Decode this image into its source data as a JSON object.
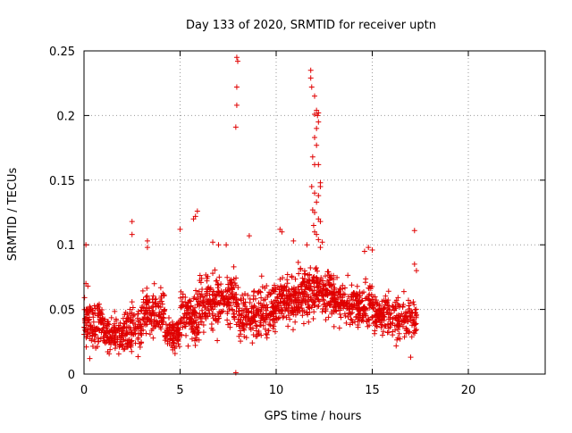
{
  "chart_data": {
    "type": "scatter",
    "title": "Day 133 of 2020, SRMTID for receiver uptn",
    "xlabel": "GPS time / hours",
    "ylabel": "SRMTID / TECUs",
    "xlim": [
      0,
      24
    ],
    "ylim": [
      0,
      0.25
    ],
    "xticks": [
      "0",
      "5",
      "10",
      "15",
      "20"
    ],
    "yticks": [
      "0",
      "0.05",
      "0.1",
      "0.15",
      "0.2",
      "0.25"
    ],
    "grid": true,
    "marker": "plus",
    "color": "#e00000",
    "bursts": [
      {
        "x_start": 0.0,
        "x_end": 1.0,
        "base": 0.038,
        "spread": 0.018,
        "count": 120
      },
      {
        "x_start": 1.0,
        "x_end": 2.0,
        "base": 0.03,
        "spread": 0.014,
        "count": 110
      },
      {
        "x_start": 2.0,
        "x_end": 3.0,
        "base": 0.035,
        "spread": 0.018,
        "count": 110
      },
      {
        "x_start": 3.0,
        "x_end": 4.2,
        "base": 0.048,
        "spread": 0.018,
        "count": 130
      },
      {
        "x_start": 4.2,
        "x_end": 5.0,
        "base": 0.032,
        "spread": 0.012,
        "count": 90
      },
      {
        "x_start": 5.0,
        "x_end": 6.0,
        "base": 0.045,
        "spread": 0.02,
        "count": 120
      },
      {
        "x_start": 6.0,
        "x_end": 7.0,
        "base": 0.055,
        "spread": 0.02,
        "count": 120
      },
      {
        "x_start": 7.0,
        "x_end": 8.0,
        "base": 0.058,
        "spread": 0.018,
        "count": 110
      },
      {
        "x_start": 8.0,
        "x_end": 9.0,
        "base": 0.045,
        "spread": 0.018,
        "count": 110
      },
      {
        "x_start": 9.0,
        "x_end": 10.0,
        "base": 0.05,
        "spread": 0.02,
        "count": 120
      },
      {
        "x_start": 10.0,
        "x_end": 11.0,
        "base": 0.058,
        "spread": 0.02,
        "count": 120
      },
      {
        "x_start": 11.0,
        "x_end": 12.0,
        "base": 0.062,
        "spread": 0.02,
        "count": 130
      },
      {
        "x_start": 12.0,
        "x_end": 13.0,
        "base": 0.065,
        "spread": 0.02,
        "count": 120
      },
      {
        "x_start": 13.0,
        "x_end": 14.0,
        "base": 0.055,
        "spread": 0.016,
        "count": 110
      },
      {
        "x_start": 14.0,
        "x_end": 15.0,
        "base": 0.055,
        "spread": 0.016,
        "count": 110
      },
      {
        "x_start": 15.0,
        "x_end": 16.0,
        "base": 0.045,
        "spread": 0.016,
        "count": 110
      },
      {
        "x_start": 16.0,
        "x_end": 17.3,
        "base": 0.042,
        "spread": 0.016,
        "count": 120
      }
    ],
    "points": [
      [
        0.1,
        0.1
      ],
      [
        0.1,
        0.07
      ],
      [
        0.2,
        0.068
      ],
      [
        0.3,
        0.012
      ],
      [
        2.5,
        0.118
      ],
      [
        2.5,
        0.108
      ],
      [
        3.3,
        0.103
      ],
      [
        3.3,
        0.098
      ],
      [
        5.0,
        0.112
      ],
      [
        5.8,
        0.122
      ],
      [
        5.9,
        0.126
      ],
      [
        5.7,
        0.12
      ],
      [
        6.7,
        0.102
      ],
      [
        7.4,
        0.1
      ],
      [
        7.0,
        0.1
      ],
      [
        7.95,
        0.245
      ],
      [
        8.0,
        0.242
      ],
      [
        7.95,
        0.222
      ],
      [
        7.95,
        0.208
      ],
      [
        7.9,
        0.191
      ],
      [
        8.6,
        0.107
      ],
      [
        10.2,
        0.112
      ],
      [
        10.3,
        0.11
      ],
      [
        10.9,
        0.103
      ],
      [
        11.8,
        0.235
      ],
      [
        11.8,
        0.229
      ],
      [
        11.85,
        0.222
      ],
      [
        12.0,
        0.215
      ],
      [
        12.1,
        0.204
      ],
      [
        12.2,
        0.202
      ],
      [
        12.0,
        0.201
      ],
      [
        12.15,
        0.2
      ],
      [
        12.2,
        0.195
      ],
      [
        12.1,
        0.19
      ],
      [
        12.0,
        0.183
      ],
      [
        12.1,
        0.177
      ],
      [
        11.9,
        0.168
      ],
      [
        12.0,
        0.162
      ],
      [
        12.2,
        0.162
      ],
      [
        12.3,
        0.148
      ],
      [
        12.3,
        0.145
      ],
      [
        11.85,
        0.145
      ],
      [
        12.0,
        0.14
      ],
      [
        12.2,
        0.138
      ],
      [
        12.1,
        0.133
      ],
      [
        11.9,
        0.127
      ],
      [
        12.0,
        0.125
      ],
      [
        12.2,
        0.12
      ],
      [
        12.3,
        0.118
      ],
      [
        11.95,
        0.115
      ],
      [
        12.0,
        0.11
      ],
      [
        12.1,
        0.108
      ],
      [
        12.2,
        0.104
      ],
      [
        12.4,
        0.102
      ],
      [
        11.6,
        0.1
      ],
      [
        12.3,
        0.098
      ],
      [
        15.0,
        0.096
      ],
      [
        14.8,
        0.098
      ],
      [
        14.6,
        0.095
      ],
      [
        17.2,
        0.111
      ],
      [
        17.2,
        0.085
      ],
      [
        17.3,
        0.08
      ],
      [
        17.0,
        0.013
      ],
      [
        7.9,
        0.001
      ]
    ]
  }
}
